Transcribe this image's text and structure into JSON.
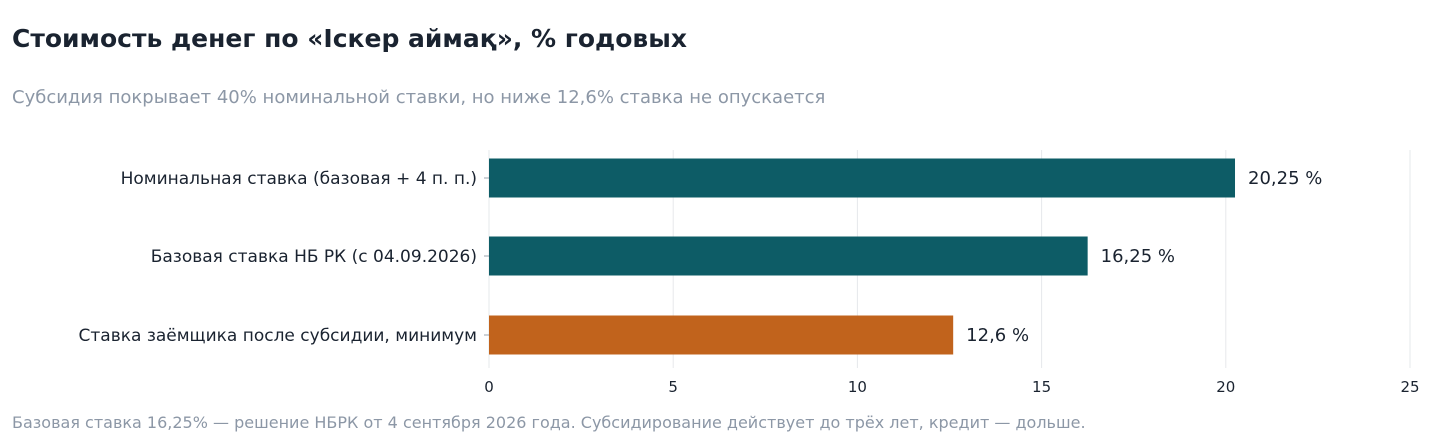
{
  "header": {
    "title": "Стоимость денег по «Іскер аймақ», % годовых",
    "subtitle": "Субсидия покрывает 40% номинальной ставки, но ниже 12,6% ставка не опускается"
  },
  "footnote": "Базовая ставка 16,25% — решение НБРК от 4 сентября 2026 года. Субсидирование действует до трёх лет, кредит — дольше.",
  "chart_data": {
    "type": "bar",
    "orientation": "horizontal",
    "categories": [
      "Номинальная ставка (базовая + 4 п. п.)",
      "Базовая ставка НБ РК (с 04.09.2026)",
      "Ставка заёмщика после субсидии, минимум"
    ],
    "values": [
      20.25,
      16.25,
      12.6
    ],
    "value_labels": [
      "20,25 %",
      "16,25 %",
      "12,6 %"
    ],
    "colors": [
      "#0d5c66",
      "#0d5c66",
      "#c1631c"
    ],
    "xlim": [
      0,
      25
    ],
    "x_ticks": [
      0,
      5,
      10,
      15,
      20,
      25
    ],
    "grid": true,
    "xlabel": "",
    "ylabel": ""
  }
}
